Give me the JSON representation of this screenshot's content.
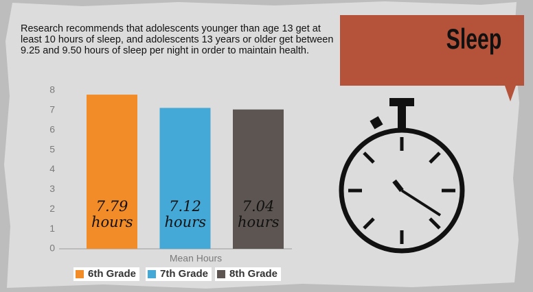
{
  "chart_data": {
    "type": "bar",
    "title": "Sleep",
    "description": "Research recommends that adolescents younger than age 13 get at least 10 hours of sleep, and adolescents 13 years or older get between 9.25 and 9.50 hours of sleep per night in order to maintain health.",
    "x_label": "Mean Hours",
    "categories": [
      "6th Grade",
      "7th Grade",
      "8th Grade"
    ],
    "values": [
      7.79,
      7.12,
      7.04
    ],
    "value_labels": [
      "7.79 hours",
      "7.12 hours",
      "7.04 hours"
    ],
    "colors": [
      "#f28c28",
      "#45a9d8",
      "#5d5551"
    ],
    "ylim": [
      0,
      8
    ],
    "yticks": [
      0,
      1,
      2,
      3,
      4,
      5,
      6,
      7,
      8
    ],
    "grid": false,
    "legend": "bottom"
  }
}
